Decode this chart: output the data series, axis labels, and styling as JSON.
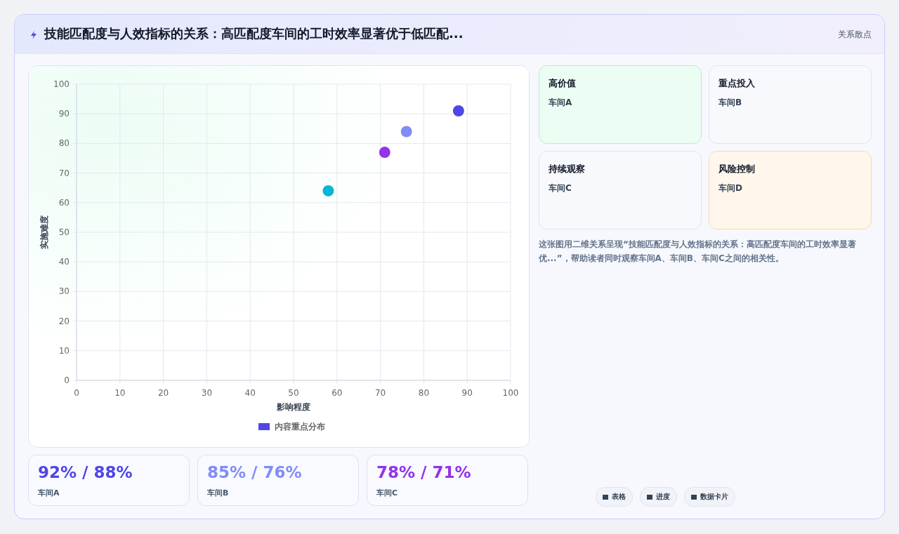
{
  "chart_data": [
    {
      "type": "other",
      "title": "技能匹配度与人效指标的关系：高匹配度车间的工时效率显著优于低匹配...",
      "subtitle": "关系散点"
    },
    {
      "type": "scatter",
      "xlabel": "影响程度",
      "ylabel": "实施难度",
      "xlim": [
        0,
        100
      ],
      "ylim": [
        0,
        100
      ],
      "xticks": [
        0,
        10,
        20,
        30,
        40,
        50,
        60,
        70,
        80,
        90,
        100
      ],
      "yticks": [
        0,
        10,
        20,
        30,
        40,
        50,
        60,
        70,
        80,
        90,
        100
      ],
      "grid": true,
      "legend": "bottom",
      "marker": "circle",
      "series": [
        {
          "name": "内容重点分布",
          "color": "#4f46e5",
          "x": [
            88,
            76,
            71,
            58
          ],
          "values": [
            91,
            84,
            77,
            64
          ],
          "colors": [
            "#4f46e5",
            "#818cf8",
            "#9333ea",
            "#06b6d4"
          ]
        }
      ]
    },
    {
      "type": "other",
      "annotations": [
        "高价值",
        "车间A",
        "重点投入",
        "车间B",
        "持续观察",
        "车间C",
        "风险控制",
        "车间D",
        "这张图用二维关系呈现“技能匹配度与人效指标的关系：高匹配度车间的工时效率显著优...”，帮助读者同时观察车间A、车间B、车间C之间的相关性。"
      ]
    },
    {
      "type": "other",
      "annotations": [
        "92% / 88%",
        "车间A",
        "85% / 76%",
        "车间B",
        "78% / 71%",
        "车间C"
      ],
      "colors": [
        "#4f46e5",
        "#818cf8",
        "#9333ea"
      ]
    },
    {
      "type": "other",
      "annotations": [
        "表格",
        "进度",
        "数据卡片"
      ]
    }
  ]
}
